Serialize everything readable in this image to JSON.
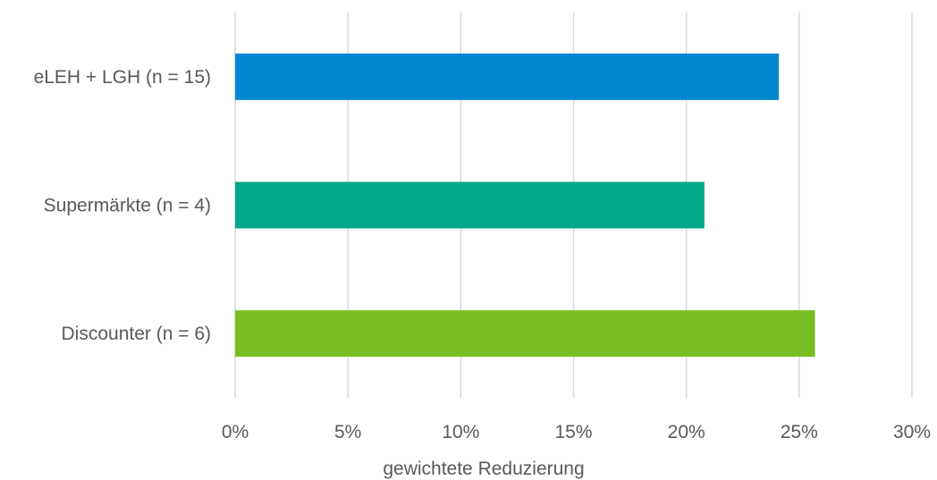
{
  "chart_data": {
    "type": "bar",
    "orientation": "horizontal",
    "categories": [
      "eLEH + LGH (n = 15)",
      "Supermärkte (n = 4)",
      "Discounter (n = 6)"
    ],
    "values": [
      0.241,
      0.208,
      0.257
    ],
    "colors": [
      "#0088d1",
      "#00a887",
      "#78be20"
    ],
    "xlabel": "gewichtete Reduzierung",
    "ylabel": "",
    "title": "",
    "xlim": [
      0,
      0.3
    ],
    "x_ticks": [
      0,
      0.05,
      0.1,
      0.15,
      0.2,
      0.25,
      0.3
    ],
    "x_tick_labels": [
      "0%",
      "5%",
      "10%",
      "15%",
      "20%",
      "25%",
      "30%"
    ],
    "grid": "vertical",
    "legend": "none"
  }
}
